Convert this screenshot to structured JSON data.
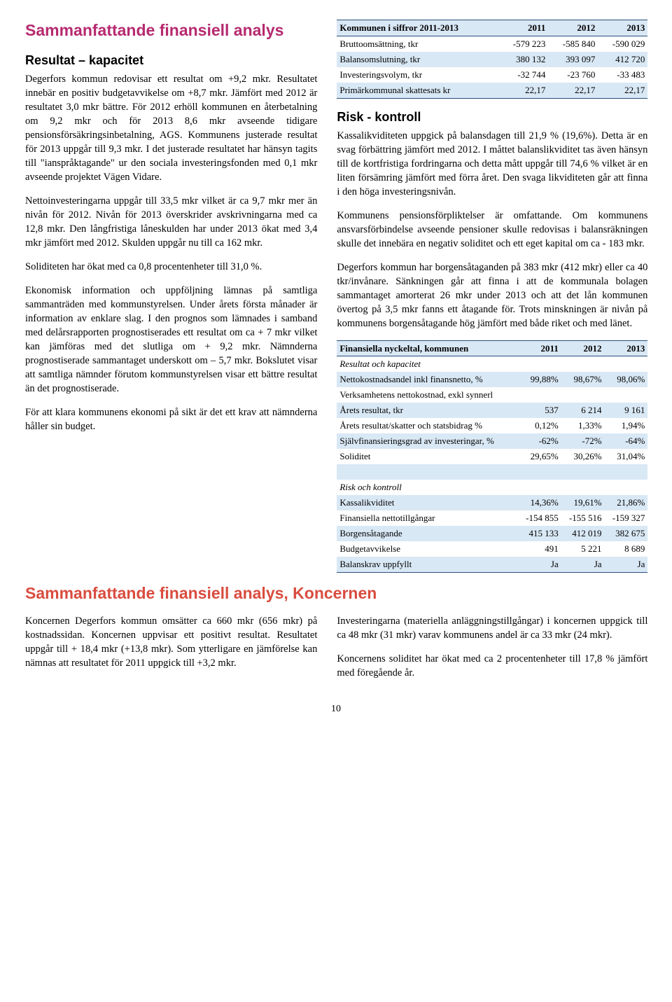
{
  "colors": {
    "heading1": "#b62a6f",
    "heading2_koncernen": "#d94c3f",
    "table_shade": "#d9e8f5",
    "table_border": "#2a4d7a"
  },
  "left": {
    "h1": "Sammanfattande finansiell analys",
    "h2": "Resultat – kapacitet",
    "p1": "Degerfors kommun redovisar ett resultat om +9,2 mkr. Resultatet innebär en positiv budgetavvikelse om +8,7 mkr. Jämfört med 2012 är resultatet 3,0 mkr bättre. För 2012 erhöll kommunen en återbetalning om 9,2 mkr och för 2013 8,6 mkr avseende tidigare pensionsförsäkringsinbetalning, AGS. Kommunens justerade resultat för 2013 uppgår till 9,3 mkr. I det justerade resultatet har hänsyn tagits till \"ianspråktagande\" ur den sociala investeringsfonden med 0,1 mkr avseende projektet Vägen Vidare.",
    "p2": "Nettoinvesteringarna uppgår till 33,5 mkr vilket är ca 9,7 mkr mer än nivån för 2012. Nivån för 2013 överskrider avskrivningarna med ca 12,8 mkr. Den långfristiga låneskulden har under 2013 ökat med 3,4 mkr jämfört med 2012. Skulden uppgår nu till ca 162 mkr.",
    "p3": "Soliditeten har ökat med ca 0,8 procentenheter till 31,0 %.",
    "p4": "Ekonomisk information och uppföljning lämnas på samtliga sammanträden med kommunstyrelsen. Under årets första månader är information av enklare slag. I den prognos som lämnades i samband med delårsrapporten prognostiserades ett resultat om ca + 7 mkr vilket kan jämföras med det slutliga om + 9,2 mkr. Nämnderna prognostiserade sammantaget underskott om – 5,7 mkr. Bokslutet visar att samtliga nämnder förutom kommunstyrelsen visar ett bättre resultat än det prognostiserade.",
    "p5": "För att klara kommunens ekonomi på sikt är det ett krav att nämnderna håller sin budget."
  },
  "right": {
    "table1": {
      "header": [
        "Kommunen i siffror 2011-2013",
        "2011",
        "2012",
        "2013"
      ],
      "rows": [
        [
          "Bruttoomsättning, tkr",
          "-579 223",
          "-585 840",
          "-590 029"
        ],
        [
          "Balansomslutning, tkr",
          "380 132",
          "393 097",
          "412 720"
        ],
        [
          "Investeringsvolym, tkr",
          "-32 744",
          "-23 760",
          "-33 483"
        ],
        [
          "Primärkommunal skattesats kr",
          "22,17",
          "22,17",
          "22,17"
        ]
      ]
    },
    "h2": "Risk - kontroll",
    "p1": "Kassalikviditeten uppgick på balansdagen till 21,9 % (19,6%). Detta är en svag förbättring jämfört med 2012. I måttet balanslikviditet tas även hänsyn till de kortfristiga fordringarna och detta mått uppgår till 74,6 % vilket är en liten försämring jämfört med förra året. Den svaga likviditeten går att finna i den höga investeringsnivån.",
    "p2": "Kommunens pensionsförpliktelser är omfattande. Om kommunens ansvarsförbindelse avseende pensioner skulle redovisas i balansräkningen skulle det innebära en negativ soliditet och ett eget kapital om ca  - 183 mkr.",
    "p3": "Degerfors kommun har borgensåtaganden på 383 mkr (412 mkr) eller ca 40 tkr/invånare. Sänkningen går att finna i att de kommunala bolagen sammantaget amorterat 26 mkr under 2013 och att det lån kommunen övertog på 3,5 mkr fanns ett åtagande för. Trots minskningen är nivån på kommunens borgensåtagande hög jämfört med både riket och med länet.",
    "table2": {
      "header": [
        "Finansiella nyckeltal, kommunen",
        "2011",
        "2012",
        "2013"
      ],
      "section1_label": "Resultat och kapacitet",
      "rows1": [
        [
          "Nettokostnadsandel inkl finansnetto, %",
          "99,88%",
          "98,67%",
          "98,06%"
        ],
        [
          "Verksamhetens nettokostnad, exkl synnerl",
          "",
          "",
          ""
        ],
        [
          "Årets resultat, tkr",
          "537",
          "6 214",
          "9 161"
        ],
        [
          "Årets resultat/skatter och statsbidrag %",
          "0,12%",
          "1,33%",
          "1,94%"
        ],
        [
          "Självfinansieringsgrad av investeringar, %",
          "-62%",
          "-72%",
          "-64%"
        ],
        [
          "Soliditet",
          "29,65%",
          "30,26%",
          "31,04%"
        ]
      ],
      "section2_label": "Risk och kontroll",
      "rows2": [
        [
          "Kassalikviditet",
          "14,36%",
          "19,61%",
          "21,86%"
        ],
        [
          "Finansiella nettotillgångar",
          "-154 855",
          "-155 516",
          "-159 327"
        ],
        [
          "Borgensåtagande",
          "415 133",
          "412 019",
          "382 675"
        ],
        [
          "Budgetavvikelse",
          "491",
          "5 221",
          "8 689"
        ],
        [
          "Balanskrav uppfyllt",
          "Ja",
          "Ja",
          "Ja"
        ]
      ]
    }
  },
  "koncernen": {
    "h1": "Sammanfattande finansiell analys, Koncernen",
    "left_p": "Koncernen Degerfors kommun omsätter ca 660 mkr (656 mkr) på kostnadssidan. Koncernen uppvisar ett positivt resultat. Resultatet uppgår till + 18,4 mkr (+13,8 mkr). Som ytterligare en jämförelse kan nämnas att resultatet för 2011 uppgick till +3,2 mkr.",
    "right_p1": "Investeringarna (materiella anläggningstillgångar) i koncernen uppgick till ca 48 mkr (31 mkr) varav kommunens andel är ca 33 mkr (24 mkr).",
    "right_p2": "Koncernens soliditet har ökat med ca 2 procentenheter till 17,8 % jämfört med föregående år."
  },
  "page_num": "10"
}
